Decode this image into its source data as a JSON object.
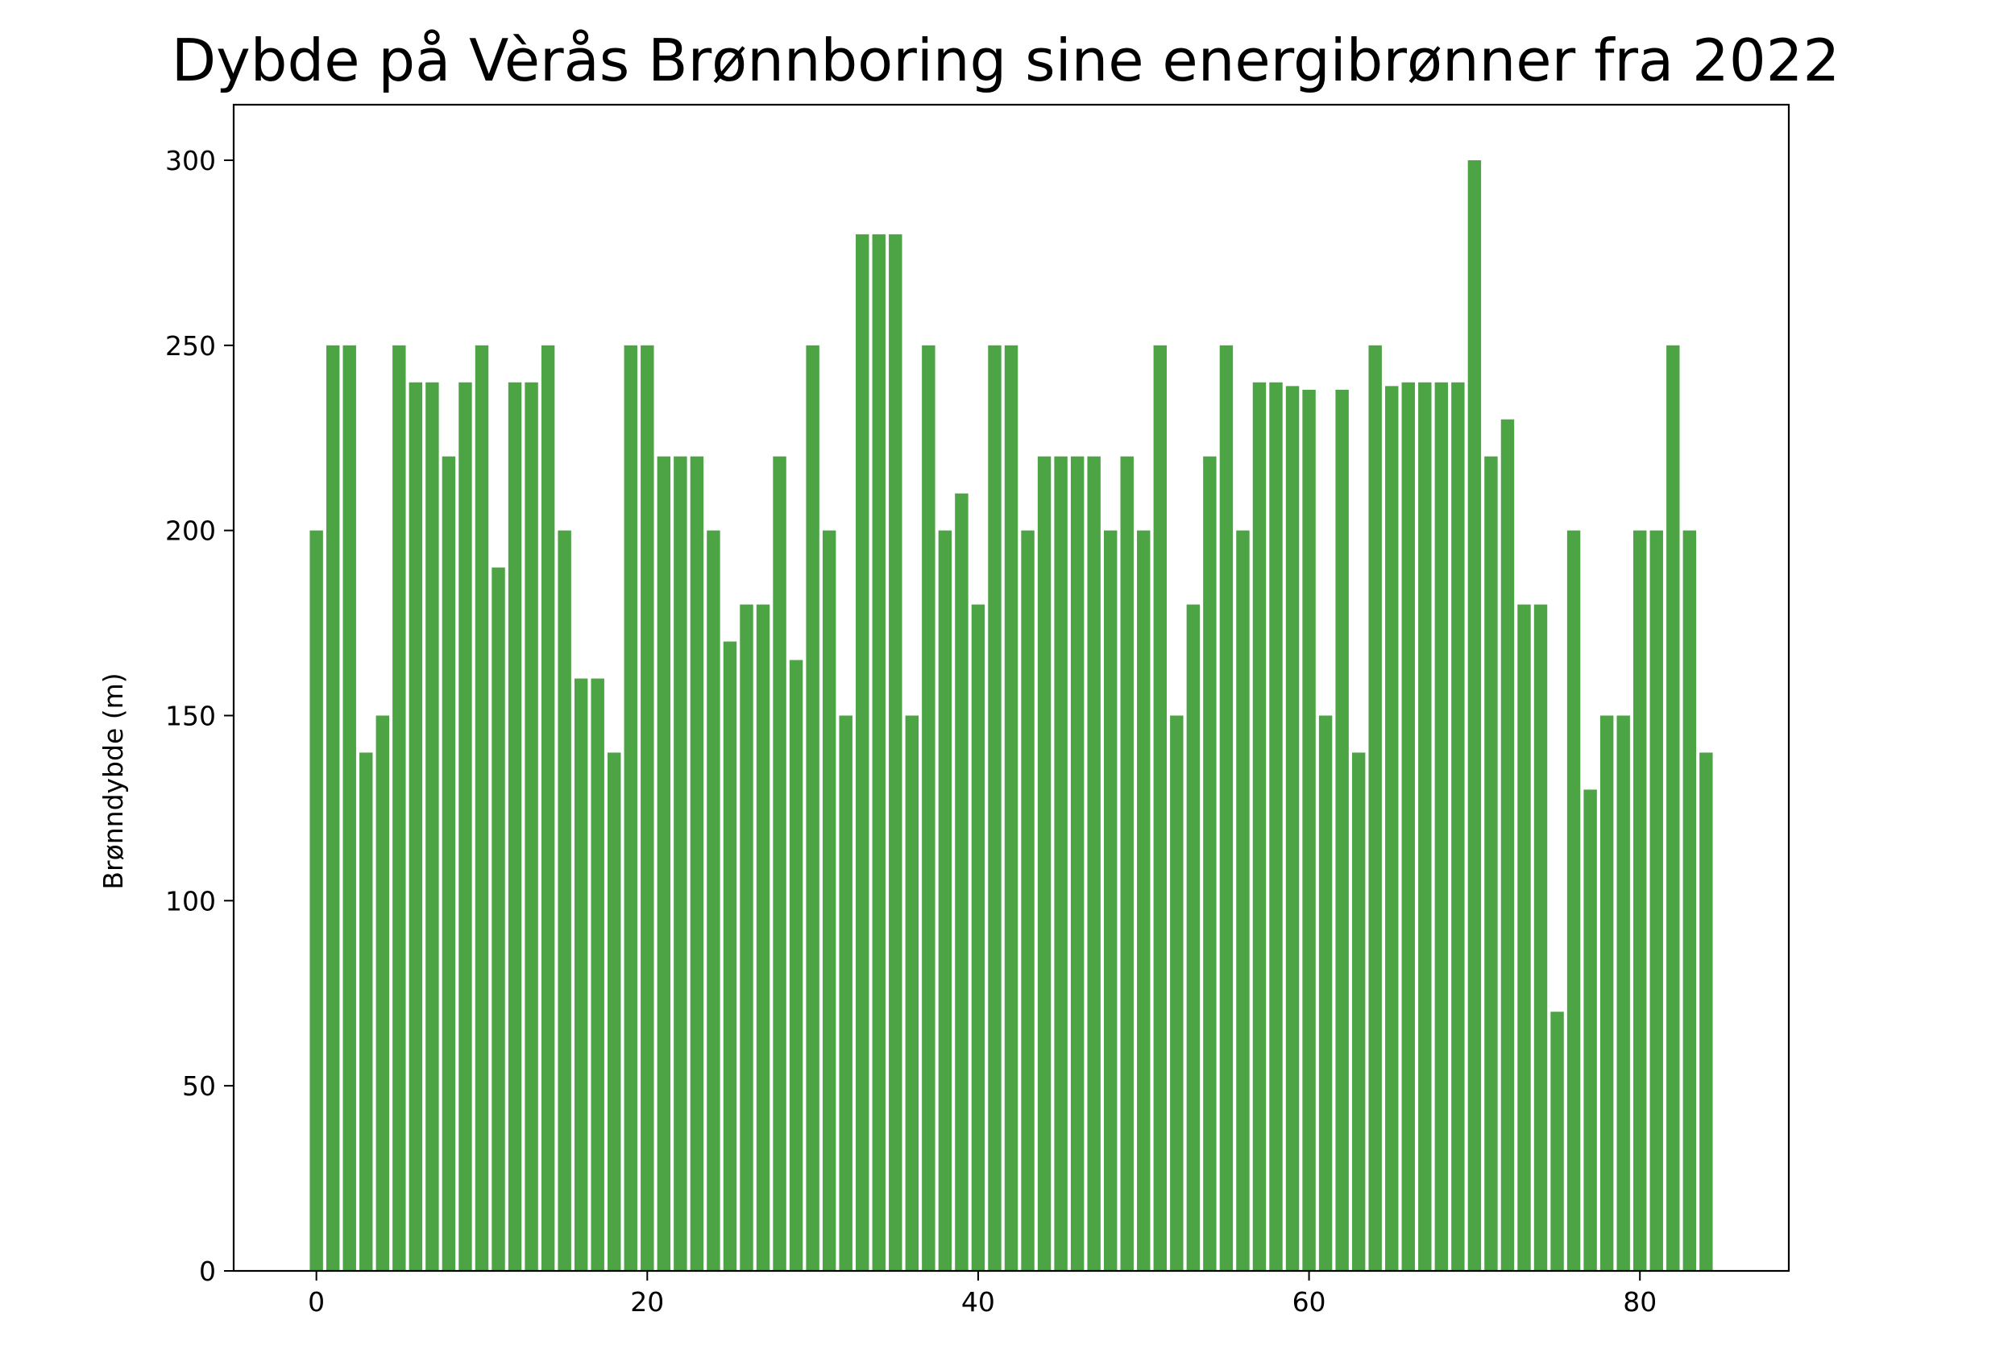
{
  "chart_data": {
    "type": "bar",
    "title": "Dybde på Vèrås Brønnboring sine energibrønner fra 2022",
    "xlabel": "",
    "ylabel": "Brønndybde (m)",
    "xlim": [
      -5,
      89
    ],
    "ylim": [
      0,
      315
    ],
    "xticks": [
      0,
      20,
      40,
      60,
      80
    ],
    "yticks": [
      0,
      50,
      100,
      150,
      200,
      250,
      300
    ],
    "grid": false,
    "bar_color": "#4da444",
    "x": [
      0,
      1,
      2,
      3,
      4,
      5,
      6,
      7,
      8,
      9,
      10,
      11,
      12,
      13,
      14,
      15,
      16,
      17,
      18,
      19,
      20,
      21,
      22,
      23,
      24,
      25,
      26,
      27,
      28,
      29,
      30,
      31,
      32,
      33,
      34,
      35,
      36,
      37,
      38,
      39,
      40,
      41,
      42,
      43,
      44,
      45,
      46,
      47,
      48,
      49,
      50,
      51,
      52,
      53,
      54,
      55,
      56,
      57,
      58,
      59,
      60,
      61,
      62,
      63,
      64,
      65,
      66,
      67,
      68,
      69,
      70,
      71,
      72,
      73,
      74,
      75,
      76,
      77,
      78,
      79,
      80,
      81,
      82,
      83,
      84
    ],
    "values": [
      200,
      250,
      250,
      140,
      150,
      250,
      240,
      240,
      220,
      240,
      250,
      190,
      240,
      240,
      250,
      200,
      160,
      160,
      140,
      250,
      250,
      220,
      220,
      220,
      200,
      170,
      180,
      180,
      220,
      165,
      250,
      200,
      150,
      280,
      280,
      280,
      150,
      250,
      200,
      210,
      180,
      250,
      250,
      200,
      220,
      220,
      220,
      220,
      200,
      220,
      200,
      250,
      150,
      180,
      220,
      250,
      200,
      240,
      240,
      239,
      238,
      150,
      238,
      140,
      250,
      239,
      240,
      240,
      240,
      240,
      300,
      220,
      230,
      180,
      180,
      70,
      200,
      130,
      150,
      150,
      200,
      200,
      250,
      200,
      140
    ]
  }
}
